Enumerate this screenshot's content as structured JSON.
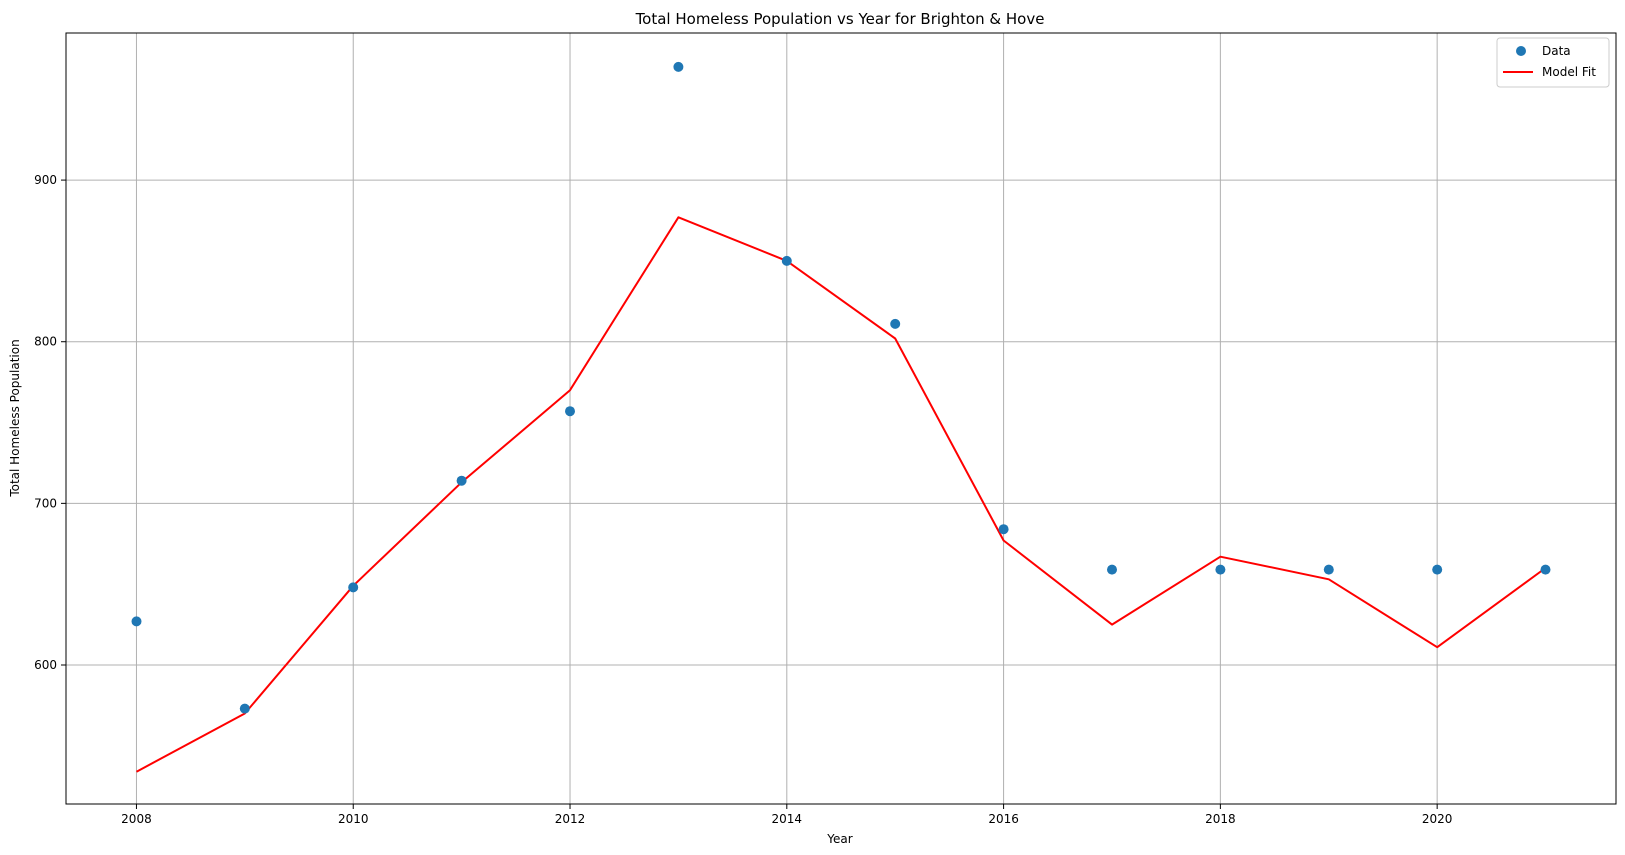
{
  "chart_data": {
    "type": "scatter",
    "title": "Total Homeless Population vs Year for Brighton & Hove",
    "xlabel": "Year",
    "ylabel": "Total Homeless Population",
    "xlim": [
      2007.35,
      2021.65
    ],
    "ylim": [
      514,
      991
    ],
    "x_ticks": [
      2008,
      2010,
      2012,
      2014,
      2016,
      2018,
      2020
    ],
    "y_ticks": [
      600,
      700,
      800,
      900
    ],
    "grid": true,
    "legend_position": "top-right",
    "series": [
      {
        "name": "Data",
        "kind": "scatter",
        "color": "#1f77b4",
        "x": [
          2008,
          2009,
          2010,
          2011,
          2012,
          2013,
          2014,
          2015,
          2016,
          2017,
          2018,
          2019,
          2020,
          2021
        ],
        "y": [
          627,
          573,
          648,
          714,
          757,
          970,
          850,
          811,
          684,
          659,
          659,
          659,
          659,
          659
        ]
      },
      {
        "name": "Model Fit",
        "kind": "line",
        "color": "#ff0000",
        "x": [
          2008,
          2009,
          2010,
          2011,
          2012,
          2013,
          2014,
          2015,
          2016,
          2017,
          2018,
          2019,
          2020,
          2021
        ],
        "y": [
          534,
          570,
          649,
          713,
          770,
          877,
          850,
          802,
          677,
          625,
          667,
          653,
          611,
          660
        ]
      }
    ]
  }
}
